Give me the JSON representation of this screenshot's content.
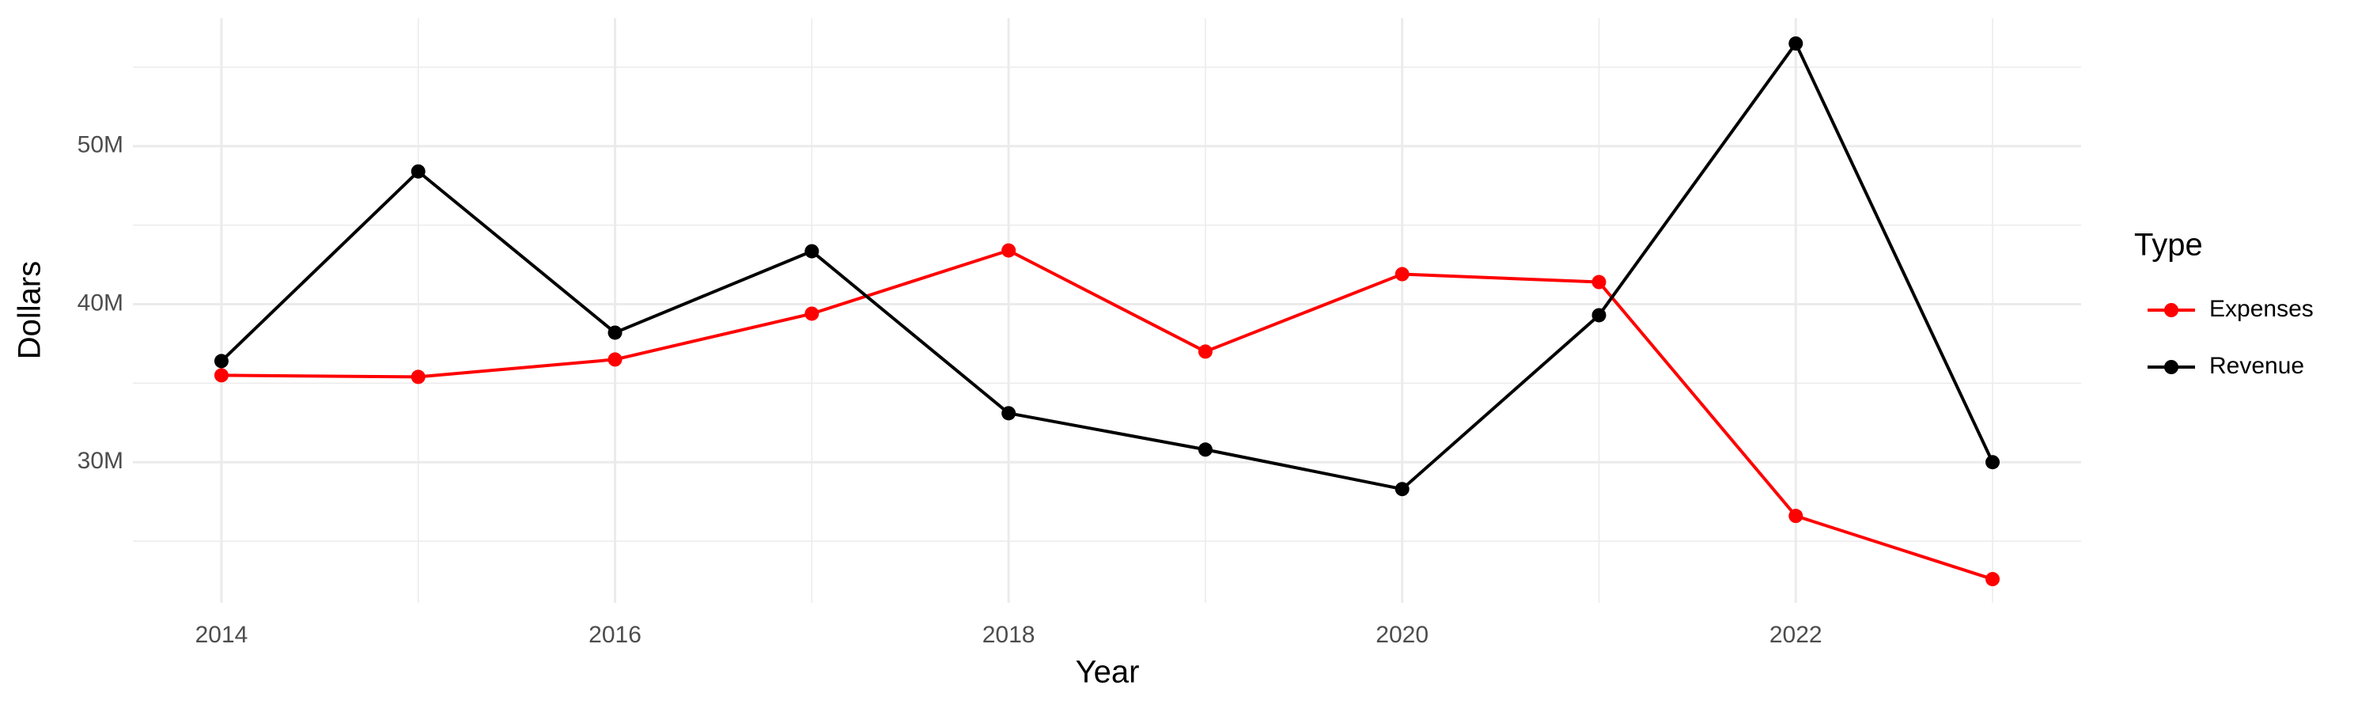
{
  "chart_data": {
    "type": "line",
    "x_label": "Year",
    "y_label": "Dollars",
    "legend_title": "Type",
    "legend_position": "right",
    "grid": true,
    "x": [
      2014,
      2015,
      2016,
      2017,
      2018,
      2019,
      2020,
      2021,
      2022,
      2023
    ],
    "series": [
      {
        "name": "Expenses",
        "color": "#ff0000",
        "values": [
          35500000,
          35400000,
          36500000,
          39400000,
          43400000,
          37000000,
          41900000,
          41400000,
          26600000,
          22600000
        ]
      },
      {
        "name": "Revenue",
        "color": "#000000",
        "values": [
          36400000,
          48400000,
          38200000,
          43350000,
          33100000,
          30800000,
          28300000,
          39300000,
          56500000,
          30000000
        ]
      }
    ],
    "xlim": [
      2013.55,
      2023.45
    ],
    "xticks": [
      2014,
      2016,
      2018,
      2020,
      2022
    ],
    "ylim": [
      21100000,
      58100000
    ],
    "yticks": [
      {
        "value": 30000000,
        "label": "30M"
      },
      {
        "value": 40000000,
        "label": "40M"
      },
      {
        "value": 50000000,
        "label": "50M"
      }
    ]
  }
}
